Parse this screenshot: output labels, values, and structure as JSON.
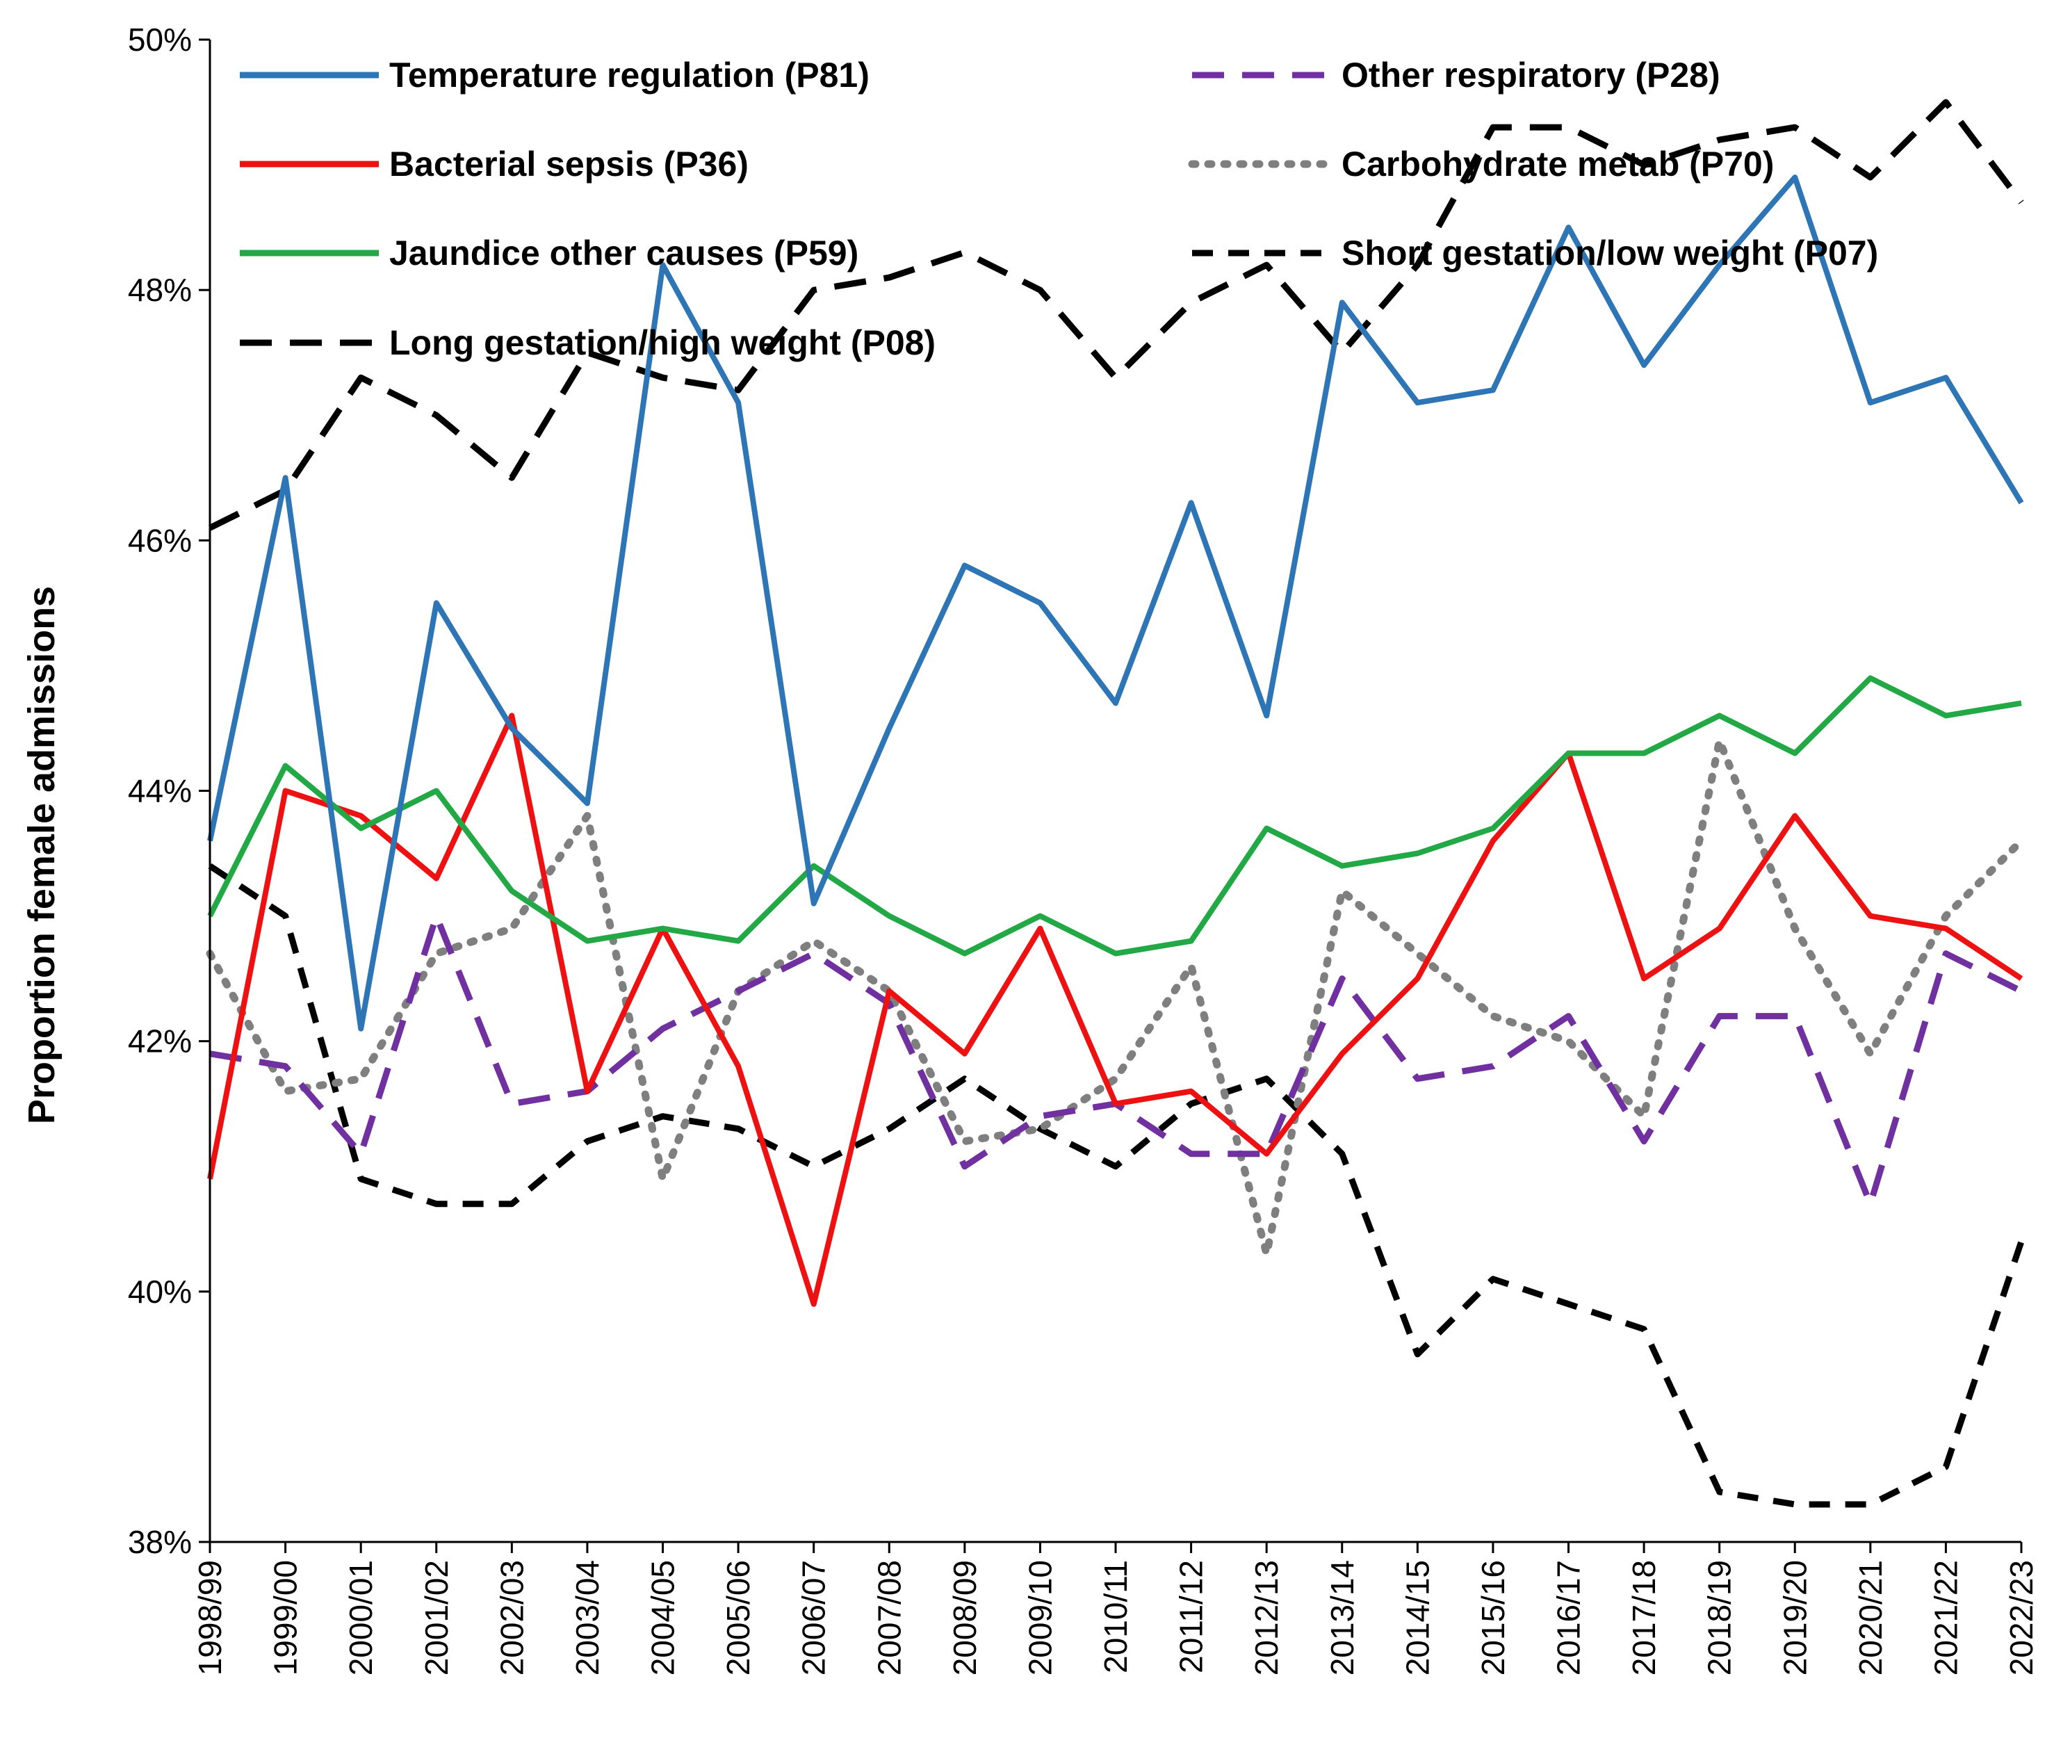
{
  "chart_data": {
    "type": "line",
    "title": "",
    "xlabel": "",
    "ylabel": "Proportion female admissions",
    "ylim": [
      38,
      50
    ],
    "y_ticks": [
      "38%",
      "40%",
      "42%",
      "44%",
      "46%",
      "48%",
      "50%"
    ],
    "y_tick_values": [
      38,
      40,
      42,
      44,
      46,
      48,
      50
    ],
    "grid": false,
    "legend_position": "top",
    "categories": [
      "1998/99",
      "1999/00",
      "2000/01",
      "2001/02",
      "2002/03",
      "2003/04",
      "2004/05",
      "2005/06",
      "2006/07",
      "2007/08",
      "2008/09",
      "2009/10",
      "2010/11",
      "2011/12",
      "2012/13",
      "2013/14",
      "2014/15",
      "2015/16",
      "2016/17",
      "2017/18",
      "2018/19",
      "2019/20",
      "2020/21",
      "2021/22",
      "2022/23"
    ],
    "series": [
      {
        "name": "Temperature regulation (P81)",
        "color": "#2e75b6",
        "dash": "solid",
        "values": [
          43.6,
          46.5,
          42.1,
          45.5,
          44.5,
          43.9,
          48.2,
          47.1,
          43.1,
          44.5,
          45.8,
          45.5,
          44.7,
          46.3,
          44.6,
          47.9,
          47.1,
          47.2,
          48.5,
          47.4,
          48.2,
          48.9,
          47.1,
          47.3,
          46.3
        ]
      },
      {
        "name": "Bacterial sepsis (P36)",
        "color": "#ee1111",
        "dash": "solid",
        "values": [
          40.9,
          44.0,
          43.8,
          43.3,
          44.6,
          41.6,
          42.9,
          41.8,
          39.9,
          42.4,
          41.9,
          42.9,
          41.5,
          41.6,
          41.1,
          41.9,
          42.5,
          43.6,
          44.3,
          42.5,
          42.9,
          43.8,
          43.0,
          42.9,
          42.5
        ]
      },
      {
        "name": "Jaundice other causes (P59)",
        "color": "#22a845",
        "dash": "solid",
        "values": [
          43.0,
          44.2,
          43.7,
          44.0,
          43.2,
          42.8,
          42.9,
          42.8,
          43.4,
          43.0,
          42.7,
          43.0,
          42.7,
          42.8,
          43.7,
          43.4,
          43.5,
          43.7,
          44.3,
          44.3,
          44.6,
          44.3,
          44.9,
          44.6,
          44.7
        ]
      },
      {
        "name": "Long gestation/high weight (P08)",
        "color": "#000000",
        "dash": "longdash",
        "values": [
          46.1,
          46.4,
          47.3,
          47.0,
          46.5,
          47.5,
          47.3,
          47.2,
          48.0,
          48.1,
          48.3,
          48.0,
          47.3,
          47.9,
          48.2,
          47.5,
          48.2,
          49.3,
          49.3,
          49.0,
          49.2,
          49.3,
          48.9,
          49.5,
          48.7
        ]
      },
      {
        "name": "Other respiratory (P28)",
        "color": "#7030a0",
        "dash": "longdash",
        "values": [
          41.9,
          41.8,
          41.1,
          43.0,
          41.5,
          41.6,
          42.1,
          42.4,
          42.7,
          42.3,
          41.0,
          41.4,
          41.5,
          41.1,
          41.1,
          42.5,
          41.7,
          41.8,
          42.2,
          41.2,
          42.2,
          42.2,
          40.7,
          42.7,
          42.4
        ]
      },
      {
        "name": "Carbohydrate metab (P70)",
        "color": "#7f7f7f",
        "dash": "dotted",
        "values": [
          42.7,
          41.6,
          41.7,
          42.7,
          42.9,
          43.8,
          40.9,
          42.4,
          42.8,
          42.4,
          41.2,
          41.3,
          41.7,
          42.6,
          40.3,
          43.2,
          42.7,
          42.2,
          42.0,
          41.4,
          44.4,
          42.9,
          41.9,
          43.0,
          43.6
        ]
      },
      {
        "name": "Short gestation/low weight (P07)",
        "color": "#000000",
        "dash": "dash",
        "values": [
          43.4,
          43.0,
          40.9,
          40.7,
          40.7,
          41.2,
          41.4,
          41.3,
          41.0,
          41.3,
          41.7,
          41.3,
          41.0,
          41.5,
          41.7,
          41.1,
          39.5,
          40.1,
          39.9,
          39.7,
          38.4,
          38.3,
          38.3,
          38.6,
          40.4
        ]
      }
    ]
  }
}
